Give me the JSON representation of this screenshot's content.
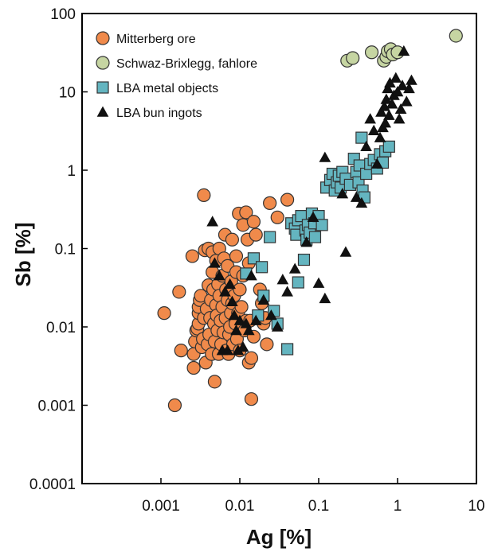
{
  "chart_data": {
    "type": "scatter",
    "xlabel": "Ag [%]",
    "ylabel": "Sb [%]",
    "xscale": "log",
    "yscale": "log",
    "xlim": [
      0.0001,
      10
    ],
    "ylim": [
      0.0001,
      100
    ],
    "x_ticks": [
      "0.001",
      "0.01",
      "0.1",
      "1",
      "10"
    ],
    "y_ticks": [
      "0.0001",
      "0.001",
      "0.01",
      "0.1",
      "1",
      "10",
      "100"
    ],
    "grid": false,
    "legend_position": "top-left",
    "series": [
      {
        "name": "Mitterberg ore",
        "marker": "circle",
        "color": "#f08a4b",
        "points": [
          [
            0.0011,
            0.015
          ],
          [
            0.0015,
            0.001
          ],
          [
            0.0017,
            0.028
          ],
          [
            0.0018,
            0.005
          ],
          [
            0.0025,
            0.08
          ],
          [
            0.0026,
            0.003
          ],
          [
            0.0026,
            0.0045
          ],
          [
            0.0027,
            0.0065
          ],
          [
            0.0028,
            0.009
          ],
          [
            0.0029,
            0.0095
          ],
          [
            0.003,
            0.011
          ],
          [
            0.003,
            0.015
          ],
          [
            0.003,
            0.018
          ],
          [
            0.0031,
            0.022
          ],
          [
            0.0032,
            0.025
          ],
          [
            0.0033,
            0.0055
          ],
          [
            0.0034,
            0.007
          ],
          [
            0.0035,
            0.013
          ],
          [
            0.0035,
            0.48
          ],
          [
            0.0036,
            0.095
          ],
          [
            0.0037,
            0.0035
          ],
          [
            0.0038,
            0.017
          ],
          [
            0.0039,
            0.006
          ],
          [
            0.004,
            0.034
          ],
          [
            0.004,
            0.1
          ],
          [
            0.0041,
            0.008
          ],
          [
            0.0042,
            0.013
          ],
          [
            0.0043,
            0.022
          ],
          [
            0.0044,
            0.0045
          ],
          [
            0.0045,
            0.05
          ],
          [
            0.0045,
            0.09
          ],
          [
            0.0046,
            0.03
          ],
          [
            0.0047,
            0.011
          ],
          [
            0.0048,
            0.0065
          ],
          [
            0.0048,
            0.002
          ],
          [
            0.005,
            0.019
          ],
          [
            0.005,
            0.07
          ],
          [
            0.0051,
            0.014
          ],
          [
            0.0052,
            0.009
          ],
          [
            0.0053,
            0.035
          ],
          [
            0.0054,
            0.0045
          ],
          [
            0.0055,
            0.025
          ],
          [
            0.0055,
            0.1
          ],
          [
            0.0057,
            0.012
          ],
          [
            0.0058,
            0.006
          ],
          [
            0.006,
            0.018
          ],
          [
            0.006,
            0.045
          ],
          [
            0.0062,
            0.0085
          ],
          [
            0.0063,
            0.075
          ],
          [
            0.0065,
            0.15
          ],
          [
            0.0066,
            0.013
          ],
          [
            0.0067,
            0.03
          ],
          [
            0.0068,
            0.005
          ],
          [
            0.007,
            0.022
          ],
          [
            0.007,
            0.06
          ],
          [
            0.0072,
            0.0045
          ],
          [
            0.0073,
            0.008
          ],
          [
            0.0075,
            0.01
          ],
          [
            0.0077,
            0.015
          ],
          [
            0.0078,
            0.038
          ],
          [
            0.008,
            0.02
          ],
          [
            0.008,
            0.13
          ],
          [
            0.0082,
            0.006
          ],
          [
            0.0085,
            0.025
          ],
          [
            0.0088,
            0.011
          ],
          [
            0.009,
            0.05
          ],
          [
            0.009,
            0.08
          ],
          [
            0.0092,
            0.007
          ],
          [
            0.0095,
            0.015
          ],
          [
            0.0097,
            0.28
          ],
          [
            0.01,
            0.03
          ],
          [
            0.01,
            0.005
          ],
          [
            0.0105,
            0.018
          ],
          [
            0.011,
            0.2
          ],
          [
            0.011,
            0.045
          ],
          [
            0.0115,
            0.009
          ],
          [
            0.012,
            0.012
          ],
          [
            0.012,
            0.29
          ],
          [
            0.0125,
            0.13
          ],
          [
            0.013,
            0.0035
          ],
          [
            0.013,
            0.065
          ],
          [
            0.0135,
            0.012
          ],
          [
            0.014,
            0.004
          ],
          [
            0.014,
            0.0012
          ],
          [
            0.015,
            0.0075
          ],
          [
            0.015,
            0.22
          ],
          [
            0.016,
            0.15
          ],
          [
            0.018,
            0.03
          ],
          [
            0.019,
            0.02
          ],
          [
            0.02,
            0.011
          ],
          [
            0.021,
            0.013
          ],
          [
            0.022,
            0.006
          ],
          [
            0.024,
            0.38
          ],
          [
            0.03,
            0.25
          ],
          [
            0.04,
            0.42
          ]
        ]
      },
      {
        "name": "Schwaz-Brixlegg, fahlore",
        "marker": "circle",
        "color": "#c6d5a2",
        "points": [
          [
            0.23,
            25
          ],
          [
            0.27,
            27
          ],
          [
            0.47,
            32
          ],
          [
            0.67,
            25
          ],
          [
            0.72,
            28
          ],
          [
            0.75,
            33
          ],
          [
            0.82,
            35
          ],
          [
            0.87,
            30
          ],
          [
            1.0,
            32
          ],
          [
            5.5,
            52
          ]
        ]
      },
      {
        "name": "LBA metal objects",
        "marker": "square",
        "color": "#64b5c0",
        "points": [
          [
            0.012,
            0.048
          ],
          [
            0.015,
            0.075
          ],
          [
            0.017,
            0.014
          ],
          [
            0.019,
            0.058
          ],
          [
            0.02,
            0.025
          ],
          [
            0.024,
            0.14
          ],
          [
            0.027,
            0.016
          ],
          [
            0.03,
            0.011
          ],
          [
            0.04,
            0.0052
          ],
          [
            0.045,
            0.21
          ],
          [
            0.05,
            0.18
          ],
          [
            0.052,
            0.15
          ],
          [
            0.055,
            0.037
          ],
          [
            0.055,
            0.23
          ],
          [
            0.06,
            0.26
          ],
          [
            0.065,
            0.072
          ],
          [
            0.068,
            0.17
          ],
          [
            0.07,
            0.13
          ],
          [
            0.073,
            0.2
          ],
          [
            0.077,
            0.16
          ],
          [
            0.082,
            0.28
          ],
          [
            0.088,
            0.21
          ],
          [
            0.09,
            0.14
          ],
          [
            0.1,
            0.26
          ],
          [
            0.11,
            0.2
          ],
          [
            0.125,
            0.6
          ],
          [
            0.14,
            0.75
          ],
          [
            0.15,
            0.9
          ],
          [
            0.16,
            0.55
          ],
          [
            0.17,
            0.7
          ],
          [
            0.18,
            0.85
          ],
          [
            0.19,
            0.6
          ],
          [
            0.2,
            0.95
          ],
          [
            0.22,
            0.78
          ],
          [
            0.25,
            0.65
          ],
          [
            0.28,
            1.4
          ],
          [
            0.3,
            0.95
          ],
          [
            0.32,
            0.7
          ],
          [
            0.33,
            1.15
          ],
          [
            0.36,
            0.55
          ],
          [
            0.38,
            0.45
          ],
          [
            0.4,
            0.9
          ],
          [
            0.45,
            1.2
          ],
          [
            0.5,
            1.35
          ],
          [
            0.55,
            1.05
          ],
          [
            0.6,
            1.6
          ],
          [
            0.65,
            1.25
          ],
          [
            0.7,
            1.75
          ],
          [
            0.78,
            2.0
          ],
          [
            0.35,
            2.6
          ]
        ]
      },
      {
        "name": "LBA bun ingots",
        "marker": "triangle",
        "color": "#111111",
        "points": [
          [
            0.0045,
            0.22
          ],
          [
            0.0048,
            0.065
          ],
          [
            0.0055,
            0.045
          ],
          [
            0.006,
            0.005
          ],
          [
            0.0065,
            0.028
          ],
          [
            0.007,
            0.005
          ],
          [
            0.0075,
            0.035
          ],
          [
            0.008,
            0.021
          ],
          [
            0.0085,
            0.014
          ],
          [
            0.009,
            0.009
          ],
          [
            0.0095,
            0.005
          ],
          [
            0.01,
            0.012
          ],
          [
            0.011,
            0.0055
          ],
          [
            0.012,
            0.011
          ],
          [
            0.013,
            0.009
          ],
          [
            0.014,
            0.045
          ],
          [
            0.016,
            0.012
          ],
          [
            0.02,
            0.022
          ],
          [
            0.025,
            0.014
          ],
          [
            0.03,
            0.01
          ],
          [
            0.035,
            0.04
          ],
          [
            0.04,
            0.028
          ],
          [
            0.05,
            0.055
          ],
          [
            0.07,
            0.12
          ],
          [
            0.085,
            0.25
          ],
          [
            0.1,
            0.036
          ],
          [
            0.12,
            0.023
          ],
          [
            0.12,
            1.45
          ],
          [
            0.2,
            0.5
          ],
          [
            0.22,
            0.09
          ],
          [
            0.3,
            0.45
          ],
          [
            0.35,
            0.38
          ],
          [
            0.4,
            2.0
          ],
          [
            0.45,
            4.5
          ],
          [
            0.5,
            3.2
          ],
          [
            0.55,
            1.2
          ],
          [
            0.6,
            2.6
          ],
          [
            0.62,
            5.5
          ],
          [
            0.65,
            3.5
          ],
          [
            0.68,
            6.5
          ],
          [
            0.7,
            4.0
          ],
          [
            0.72,
            8.0
          ],
          [
            0.75,
            11.0
          ],
          [
            0.78,
            5.0
          ],
          [
            0.8,
            13.0
          ],
          [
            0.85,
            7.0
          ],
          [
            0.9,
            9.0
          ],
          [
            0.95,
            15.0
          ],
          [
            1.0,
            10.0
          ],
          [
            1.05,
            4.5
          ],
          [
            1.1,
            6.0
          ],
          [
            1.15,
            12.0
          ],
          [
            1.2,
            33.0
          ],
          [
            1.3,
            7.5
          ],
          [
            1.4,
            11.0
          ],
          [
            1.5,
            14.0
          ]
        ]
      }
    ]
  }
}
